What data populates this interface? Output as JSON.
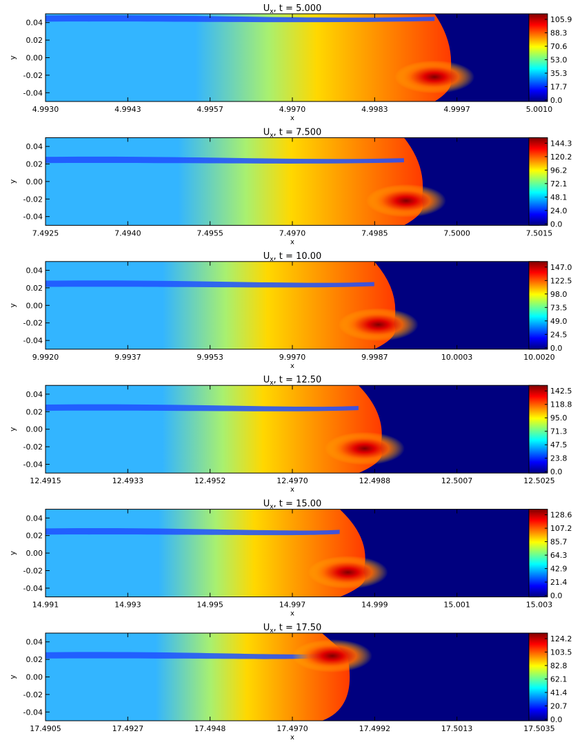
{
  "colorbar_colors": [
    "#00007f",
    "#0000ff",
    "#007fff",
    "#00ffff",
    "#7fff7f",
    "#ffff00",
    "#ff7f00",
    "#ff0000",
    "#7f0000"
  ],
  "field_colors": {
    "background": "#00007f",
    "stream": "#33b5ff",
    "jet_low": "#1e50ff",
    "hot": "#ff3a00",
    "warm": "#ffd800",
    "green": "#a8f070"
  },
  "chart_data": [
    {
      "type": "heatmap",
      "title_var": "U",
      "title_sub": "x",
      "title_time": ", t = 5.000",
      "time": 5.0,
      "xlabel": "x",
      "ylabel": "y",
      "xlim": [
        4.993,
        5.001
      ],
      "ylim": [
        -0.05,
        0.05
      ],
      "x_ticks": [
        "4.9930",
        "4.9943",
        "4.9957",
        "4.9970",
        "4.9983",
        "4.9997",
        "5.0010"
      ],
      "y_ticks": [
        "0.04",
        "0.02",
        "0.00",
        "-0.02",
        "-0.04"
      ],
      "colorbar_ticks": [
        "105.9",
        "88.3",
        "70.6",
        "53.0",
        "35.3",
        "17.7",
        "0.0"
      ],
      "colorbar_range": [
        0.0,
        105.9
      ],
      "front_x": 4.99955,
      "peak_y": -0.022
    },
    {
      "type": "heatmap",
      "title_var": "U",
      "title_sub": "x",
      "title_time": ", t = 7.500",
      "time": 7.5,
      "xlabel": "x",
      "ylabel": "y",
      "xlim": [
        7.4925,
        7.5015
      ],
      "ylim": [
        -0.05,
        0.05
      ],
      "x_ticks": [
        "7.4925",
        "7.4940",
        "7.4955",
        "7.4970",
        "7.4985",
        "7.5000",
        "7.5015"
      ],
      "y_ticks": [
        "0.04",
        "0.02",
        "0.00",
        "-0.02",
        "-0.04"
      ],
      "colorbar_ticks": [
        "144.3",
        "120.2",
        "96.2",
        "72.1",
        "48.1",
        "24.0",
        "0.0"
      ],
      "colorbar_range": [
        0.0,
        144.3
      ],
      "front_x": 7.49935,
      "peak_y": -0.022
    },
    {
      "type": "heatmap",
      "title_var": "U",
      "title_sub": "x",
      "title_time": ", t = 10.00",
      "time": 10.0,
      "xlabel": "x",
      "ylabel": "y",
      "xlim": [
        9.992,
        10.002
      ],
      "ylim": [
        -0.05,
        0.05
      ],
      "x_ticks": [
        "9.9920",
        "9.9937",
        "9.9953",
        "9.9970",
        "9.9987",
        "10.0003",
        "10.0020"
      ],
      "y_ticks": [
        "0.04",
        "0.02",
        "0.00",
        "-0.02",
        "-0.04"
      ],
      "colorbar_ticks": [
        "147.0",
        "122.5",
        "98.0",
        "73.5",
        "49.0",
        "24.5",
        "0.0"
      ],
      "colorbar_range": [
        0.0,
        147.0
      ],
      "front_x": 9.99905,
      "peak_y": -0.022
    },
    {
      "type": "heatmap",
      "title_var": "U",
      "title_sub": "x",
      "title_time": ", t = 12.50",
      "time": 12.5,
      "xlabel": "x",
      "ylabel": "y",
      "xlim": [
        12.4915,
        12.5025
      ],
      "ylim": [
        -0.05,
        0.05
      ],
      "x_ticks": [
        "12.4915",
        "12.4933",
        "12.4952",
        "12.4970",
        "12.4988",
        "12.5007",
        "12.5025"
      ],
      "y_ticks": [
        "0.04",
        "0.02",
        "0.00",
        "-0.02",
        "-0.04"
      ],
      "colorbar_ticks": [
        "142.5",
        "118.8",
        "95.0",
        "71.3",
        "47.5",
        "23.8",
        "0.0"
      ],
      "colorbar_range": [
        0.0,
        142.5
      ],
      "front_x": 12.49895,
      "peak_y": -0.022
    },
    {
      "type": "heatmap",
      "title_var": "U",
      "title_sub": "x",
      "title_time": ", t = 15.00",
      "time": 15.0,
      "xlabel": "x",
      "ylabel": "y",
      "xlim": [
        14.991,
        15.003
      ],
      "ylim": [
        -0.05,
        0.05
      ],
      "x_ticks": [
        "14.991",
        "14.993",
        "14.995",
        "14.997",
        "14.999",
        "15.001",
        "15.003"
      ],
      "y_ticks": [
        "0.04",
        "0.02",
        "0.00",
        "-0.02",
        "-0.04"
      ],
      "colorbar_ticks": [
        "128.6",
        "107.2",
        "85.7",
        "64.3",
        "42.9",
        "21.4",
        "0.0"
      ],
      "colorbar_range": [
        0.0,
        128.6
      ],
      "front_x": 14.99872,
      "peak_y": -0.022
    },
    {
      "type": "heatmap",
      "title_var": "U",
      "title_sub": "x",
      "title_time": ", t = 17.50",
      "time": 17.5,
      "xlabel": "x",
      "ylabel": "y",
      "xlim": [
        17.4905,
        17.5035
      ],
      "ylim": [
        -0.05,
        0.05
      ],
      "x_ticks": [
        "17.4905",
        "17.4927",
        "17.4948",
        "17.4970",
        "17.4992",
        "17.5013",
        "17.5035"
      ],
      "y_ticks": [
        "0.04",
        "0.02",
        "0.00",
        "-0.02",
        "-0.04"
      ],
      "colorbar_ticks": [
        "124.2",
        "103.5",
        "82.8",
        "62.1",
        "41.4",
        "20.7",
        "0.0"
      ],
      "colorbar_range": [
        0.0,
        124.2
      ],
      "front_x": 17.49845,
      "peak_y": 0.024
    }
  ]
}
